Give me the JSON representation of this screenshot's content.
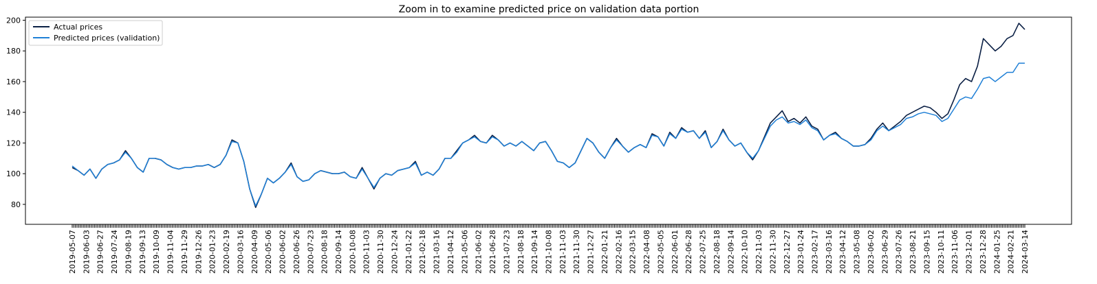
{
  "chart_data": {
    "type": "line",
    "title": "Zoom in to examine predicted price on validation data portion",
    "xlabel": "",
    "ylabel": "",
    "ylim": [
      67,
      202
    ],
    "yticks": [
      80,
      100,
      120,
      140,
      160,
      180,
      200
    ],
    "grid": false,
    "legend_position": "top-left",
    "x_tick_labels": [
      "2019-05-07",
      "2019-06-03",
      "2019-06-27",
      "2019-07-24",
      "2019-08-19",
      "2019-09-13",
      "2019-10-09",
      "2019-11-04",
      "2019-11-29",
      "2019-12-26",
      "2020-01-23",
      "2020-02-19",
      "2020-03-16",
      "2020-04-09",
      "2020-05-06",
      "2020-06-02",
      "2020-06-26",
      "2020-07-23",
      "2020-08-18",
      "2020-09-14",
      "2020-10-08",
      "2020-11-03",
      "2020-11-30",
      "2020-12-24",
      "2021-01-22",
      "2021-02-18",
      "2021-03-16",
      "2021-04-12",
      "2021-05-06",
      "2021-06-02",
      "2021-06-28",
      "2021-07-23",
      "2021-08-18",
      "2021-09-14",
      "2021-10-08",
      "2021-11-03",
      "2021-11-30",
      "2021-12-27",
      "2022-01-21",
      "2022-02-16",
      "2022-03-15",
      "2022-04-08",
      "2022-05-05",
      "2022-06-01",
      "2022-06-28",
      "2022-07-25",
      "2022-08-18",
      "2022-09-14",
      "2022-10-10",
      "2022-11-03",
      "2022-11-30",
      "2022-12-27",
      "2023-01-24",
      "2023-02-17",
      "2023-03-16",
      "2023-04-12",
      "2023-05-08",
      "2023-06-02",
      "2023-06-29",
      "2023-07-26",
      "2023-08-21",
      "2023-09-15",
      "2023-10-11",
      "2023-11-06",
      "2023-12-01",
      "2023-12-28",
      "2024-01-25",
      "2024-02-21",
      "2024-03-14"
    ],
    "series": [
      {
        "name": "Actual prices",
        "color": "#0a1f44",
        "values": [
          104,
          102,
          99,
          103,
          97,
          103,
          106,
          107,
          109,
          115,
          110,
          104,
          101,
          110,
          110,
          109,
          106,
          104,
          103,
          104,
          104,
          105,
          105,
          106,
          104,
          106,
          112,
          122,
          120,
          108,
          90,
          78,
          87,
          97,
          94,
          97,
          101,
          107,
          98,
          95,
          96,
          100,
          102,
          101,
          100,
          100,
          101,
          98,
          97,
          104,
          97,
          90,
          97,
          100,
          99,
          102,
          103,
          104,
          108,
          99,
          101,
          99,
          103,
          110,
          110,
          115,
          120,
          122,
          125,
          121,
          120,
          125,
          122,
          118,
          120,
          118,
          121,
          118,
          115,
          120,
          121,
          115,
          108,
          107,
          104,
          107,
          115,
          123,
          120,
          114,
          110,
          117,
          123,
          118,
          114,
          117,
          119,
          117,
          126,
          124,
          118,
          127,
          123,
          130,
          127,
          128,
          123,
          128,
          117,
          121,
          129,
          122,
          118,
          120,
          114,
          109,
          115,
          124,
          133,
          137,
          141,
          134,
          136,
          133,
          137,
          131,
          129,
          122,
          125,
          127,
          123,
          121,
          118,
          118,
          119,
          123,
          129,
          133,
          128,
          131,
          134,
          138,
          140,
          142,
          144,
          143,
          140,
          136,
          139,
          148,
          158,
          162,
          160,
          170,
          188,
          184,
          180,
          183,
          188,
          190,
          198,
          194
        ]
      },
      {
        "name": "Predicted prices (validation)",
        "color": "#1e7fd6",
        "values": [
          105,
          102,
          99,
          103,
          97,
          103,
          106,
          107,
          109,
          114,
          110,
          104,
          101,
          110,
          110,
          109,
          106,
          104,
          103,
          104,
          104,
          105,
          105,
          106,
          104,
          106,
          112,
          121,
          120,
          108,
          90,
          79,
          87,
          97,
          94,
          97,
          101,
          106,
          98,
          95,
          96,
          100,
          102,
          101,
          100,
          100,
          101,
          98,
          97,
          103,
          97,
          91,
          97,
          100,
          99,
          102,
          103,
          104,
          107,
          99,
          101,
          99,
          103,
          110,
          110,
          114,
          120,
          122,
          124,
          121,
          120,
          124,
          122,
          118,
          120,
          118,
          121,
          118,
          115,
          120,
          121,
          115,
          108,
          107,
          104,
          107,
          115,
          123,
          120,
          114,
          110,
          117,
          122,
          118,
          114,
          117,
          119,
          117,
          125,
          124,
          118,
          126,
          123,
          129,
          127,
          128,
          123,
          127,
          117,
          121,
          128,
          122,
          118,
          120,
          114,
          110,
          115,
          123,
          131,
          135,
          137,
          133,
          134,
          132,
          135,
          130,
          128,
          122,
          125,
          126,
          123,
          121,
          118,
          118,
          119,
          122,
          128,
          131,
          128,
          130,
          132,
          136,
          137,
          139,
          140,
          139,
          138,
          134,
          136,
          142,
          148,
          150,
          149,
          155,
          162,
          163,
          160,
          163,
          166,
          166,
          172,
          172
        ]
      }
    ]
  }
}
